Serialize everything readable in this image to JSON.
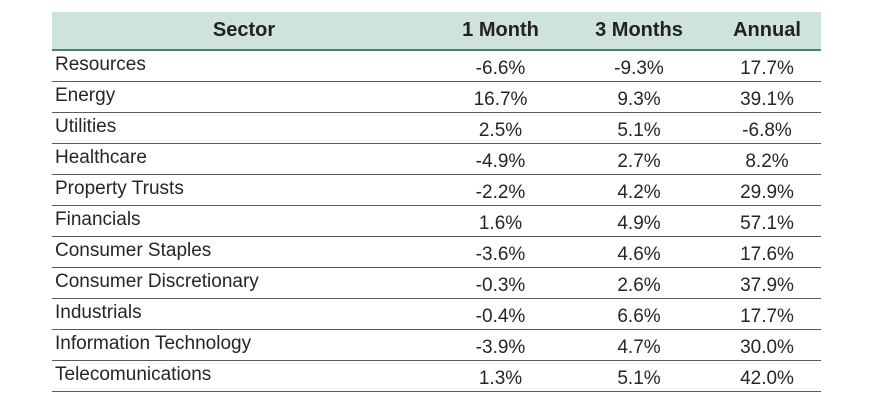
{
  "chart_data": {
    "type": "table",
    "columns": [
      "Sector",
      "1 Month",
      "3 Months",
      "Annual"
    ],
    "rows": [
      {
        "sector": "Resources",
        "m1": "-6.6%",
        "m3": "-9.3%",
        "annual": "17.7%"
      },
      {
        "sector": "Energy",
        "m1": "16.7%",
        "m3": "9.3%",
        "annual": "39.1%"
      },
      {
        "sector": "Utilities",
        "m1": "2.5%",
        "m3": "5.1%",
        "annual": "-6.8%"
      },
      {
        "sector": "Healthcare",
        "m1": "-4.9%",
        "m3": "2.7%",
        "annual": "8.2%"
      },
      {
        "sector": "Property Trusts",
        "m1": "-2.2%",
        "m3": "4.2%",
        "annual": "29.9%"
      },
      {
        "sector": "Financials",
        "m1": "1.6%",
        "m3": "4.9%",
        "annual": "57.1%"
      },
      {
        "sector": "Consumer Staples",
        "m1": "-3.6%",
        "m3": "4.6%",
        "annual": "17.6%"
      },
      {
        "sector": "Consumer Discretionary",
        "m1": "-0.3%",
        "m3": "2.6%",
        "annual": "37.9%"
      },
      {
        "sector": "Industrials",
        "m1": "-0.4%",
        "m3": "6.6%",
        "annual": "17.7%"
      },
      {
        "sector": "Information Technology",
        "m1": "-3.9%",
        "m3": "4.7%",
        "annual": "30.0%"
      },
      {
        "sector": "Telecomunications",
        "m1": "1.3%",
        "m3": "5.1%",
        "annual": "42.0%"
      }
    ]
  },
  "colors": {
    "header_background": "#cde3dc",
    "header_rule": "#4d7f78",
    "row_rule": "#5a5a5a"
  }
}
